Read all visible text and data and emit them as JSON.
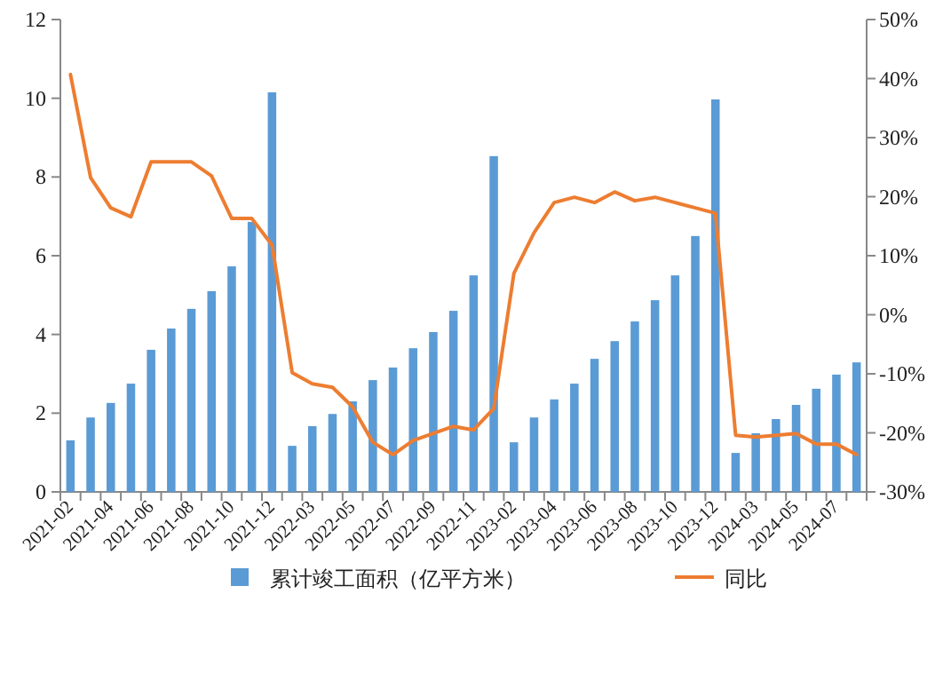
{
  "chart_data": {
    "type": "bar",
    "categories": [
      "2021-02",
      null,
      "2021-04",
      null,
      "2021-06",
      null,
      "2021-08",
      null,
      "2021-10",
      null,
      "2021-12",
      null,
      "2022-03",
      null,
      "2022-05",
      null,
      "2022-07",
      null,
      "2022-09",
      null,
      "2022-11",
      null,
      "2023-02",
      null,
      "2023-04",
      null,
      "2023-06",
      null,
      "2023-08",
      null,
      "2023-10",
      null,
      "2023-12",
      null,
      "2024-03",
      null,
      "2024-05",
      null,
      "2024-07",
      null
    ],
    "series": [
      {
        "name": "累计竣工面积（亿平方米）",
        "color": "#5b9bd5",
        "values": [
          1.31,
          1.89,
          2.26,
          2.75,
          3.61,
          4.15,
          4.65,
          5.1,
          5.73,
          6.86,
          10.15,
          1.17,
          1.67,
          1.98,
          2.3,
          2.84,
          3.16,
          3.65,
          4.06,
          4.6,
          5.5,
          8.53,
          1.26,
          1.89,
          2.35,
          2.75,
          3.38,
          3.83,
          4.33,
          4.87,
          5.5,
          6.5,
          9.97,
          0.99,
          1.49,
          1.85,
          2.21,
          2.62,
          2.98,
          3.29
        ]
      },
      {
        "name": "同比",
        "type": "line",
        "axis": "y2",
        "color": "#ed7d31",
        "values": [
          40.7,
          23.2,
          18.1,
          16.6,
          25.9,
          25.9,
          25.9,
          23.5,
          16.3,
          16.3,
          11.8,
          -9.8,
          -11.7,
          -12.3,
          -15.6,
          -21.6,
          -23.7,
          -21.3,
          -20.1,
          -18.9,
          -19.5,
          -15.9,
          7.0,
          13.9,
          19.0,
          19.9,
          19.0,
          20.8,
          19.3,
          19.9,
          19.0,
          18.1,
          17.2,
          -20.4,
          -20.7,
          -20.4,
          -20.1,
          -21.9,
          -21.9,
          -23.7
        ]
      }
    ],
    "ylim": [
      0,
      12
    ],
    "yticks": [
      0,
      2,
      4,
      6,
      8,
      10,
      12
    ],
    "y2lim": [
      -30,
      50
    ],
    "y2ticks": [
      {
        "value": -30,
        "label": "-30%"
      },
      {
        "value": -20,
        "label": "-20%"
      },
      {
        "value": -10,
        "label": "-10%"
      },
      {
        "value": 0,
        "label": "0%"
      },
      {
        "value": 10,
        "label": "10%"
      },
      {
        "value": 20,
        "label": "20%"
      },
      {
        "value": 30,
        "label": "30%"
      },
      {
        "value": 40,
        "label": "40%"
      },
      {
        "value": 50,
        "label": "50%"
      }
    ],
    "legend": "bottom",
    "grid": false
  }
}
